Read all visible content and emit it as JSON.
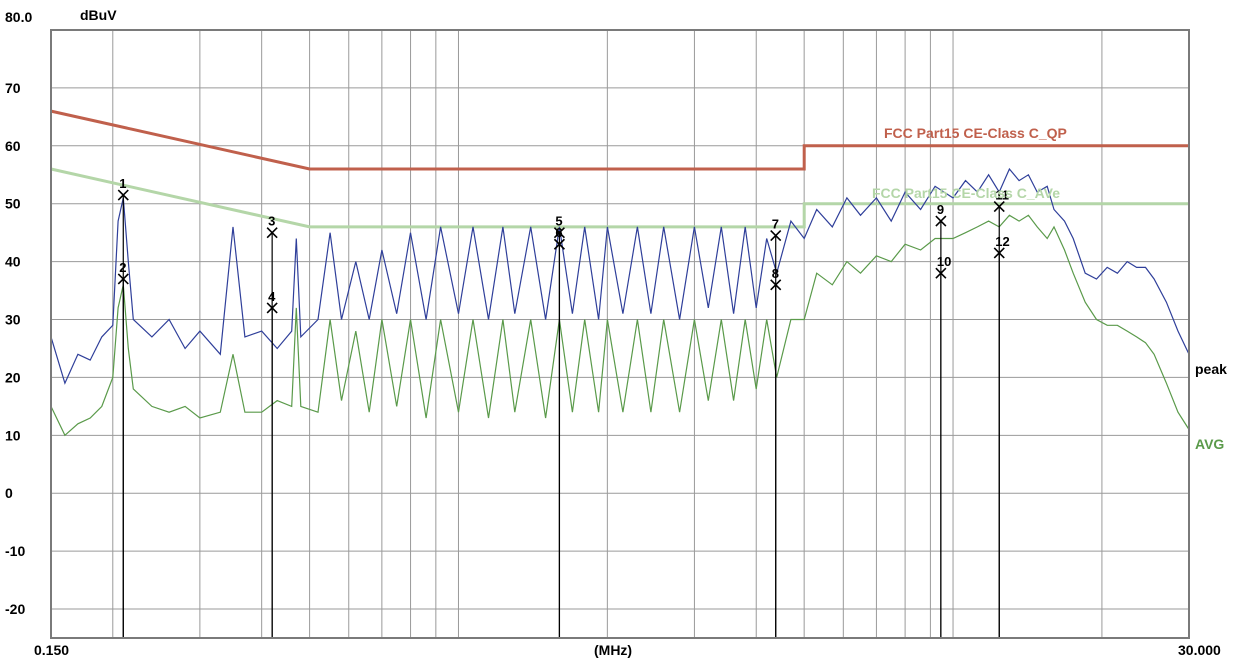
{
  "chart_data": {
    "type": "line",
    "xlabel": "(MHz)",
    "ylabel": "dBuV",
    "xscale": "log",
    "xlim": [
      0.15,
      30.0
    ],
    "ylim": [
      -25,
      80
    ],
    "x_tick_labels": {
      "min": "0.150",
      "max": "30.000"
    },
    "y_top_label": "80.0",
    "y_ticks": [
      70,
      60,
      50,
      40,
      30,
      20,
      10,
      0,
      -10,
      -20
    ],
    "grid": true,
    "limits": [
      {
        "name": "FCC Part15 CE-Class C_QP",
        "color": "#c0604c",
        "points": [
          [
            0.15,
            66
          ],
          [
            0.5,
            56
          ],
          [
            5.0,
            56
          ],
          [
            5.0,
            60
          ],
          [
            30.0,
            60
          ]
        ]
      },
      {
        "name": "FCC Part15 CE-Class C_AVe",
        "color": "#b4d6a8",
        "points": [
          [
            0.15,
            56
          ],
          [
            0.5,
            46
          ],
          [
            5.0,
            46
          ],
          [
            5.0,
            50
          ],
          [
            30.0,
            50
          ]
        ]
      }
    ],
    "series": [
      {
        "name": "peak",
        "color": "#2f3f9a",
        "points": [
          [
            0.15,
            27
          ],
          [
            0.16,
            19
          ],
          [
            0.17,
            24
          ],
          [
            0.18,
            23
          ],
          [
            0.19,
            27
          ],
          [
            0.2,
            29
          ],
          [
            0.205,
            47
          ],
          [
            0.21,
            51
          ],
          [
            0.215,
            40
          ],
          [
            0.22,
            30
          ],
          [
            0.24,
            27
          ],
          [
            0.26,
            30
          ],
          [
            0.28,
            25
          ],
          [
            0.3,
            28
          ],
          [
            0.33,
            24
          ],
          [
            0.35,
            46
          ],
          [
            0.37,
            27
          ],
          [
            0.4,
            28
          ],
          [
            0.43,
            25
          ],
          [
            0.46,
            28
          ],
          [
            0.47,
            44
          ],
          [
            0.48,
            27
          ],
          [
            0.52,
            30
          ],
          [
            0.55,
            45
          ],
          [
            0.58,
            30
          ],
          [
            0.62,
            40
          ],
          [
            0.66,
            30
          ],
          [
            0.7,
            42
          ],
          [
            0.75,
            31
          ],
          [
            0.8,
            45
          ],
          [
            0.86,
            30
          ],
          [
            0.92,
            46
          ],
          [
            1.0,
            31
          ],
          [
            1.07,
            46
          ],
          [
            1.15,
            30
          ],
          [
            1.23,
            46
          ],
          [
            1.3,
            31
          ],
          [
            1.4,
            46
          ],
          [
            1.5,
            30
          ],
          [
            1.6,
            46
          ],
          [
            1.7,
            31
          ],
          [
            1.8,
            46
          ],
          [
            1.92,
            30
          ],
          [
            2.0,
            46
          ],
          [
            2.15,
            31
          ],
          [
            2.3,
            46
          ],
          [
            2.45,
            31
          ],
          [
            2.6,
            46
          ],
          [
            2.8,
            30
          ],
          [
            3.0,
            46
          ],
          [
            3.2,
            32
          ],
          [
            3.4,
            46
          ],
          [
            3.6,
            31
          ],
          [
            3.8,
            46
          ],
          [
            4.0,
            32
          ],
          [
            4.2,
            44
          ],
          [
            4.4,
            38
          ],
          [
            4.7,
            47
          ],
          [
            5.0,
            44
          ],
          [
            5.3,
            49
          ],
          [
            5.7,
            46
          ],
          [
            6.1,
            51
          ],
          [
            6.5,
            48
          ],
          [
            7.0,
            51
          ],
          [
            7.5,
            47
          ],
          [
            8.0,
            52
          ],
          [
            8.6,
            49
          ],
          [
            9.2,
            53
          ],
          [
            10.0,
            51
          ],
          [
            10.6,
            54
          ],
          [
            11.2,
            52
          ],
          [
            11.8,
            55
          ],
          [
            12.4,
            52
          ],
          [
            13.0,
            56
          ],
          [
            13.6,
            54
          ],
          [
            14.2,
            55
          ],
          [
            14.8,
            52
          ],
          [
            15.5,
            53
          ],
          [
            16.0,
            49
          ],
          [
            16.8,
            47
          ],
          [
            17.5,
            44
          ],
          [
            18.5,
            38
          ],
          [
            19.5,
            37
          ],
          [
            20.5,
            39
          ],
          [
            21.5,
            38
          ],
          [
            22.5,
            40
          ],
          [
            23.5,
            39
          ],
          [
            24.5,
            39
          ],
          [
            25.5,
            37
          ],
          [
            27.0,
            33
          ],
          [
            28.5,
            28
          ],
          [
            30.0,
            24
          ]
        ]
      },
      {
        "name": "AVG",
        "color": "#5a9a4a",
        "points": [
          [
            0.15,
            15
          ],
          [
            0.16,
            10
          ],
          [
            0.17,
            12
          ],
          [
            0.18,
            13
          ],
          [
            0.19,
            15
          ],
          [
            0.2,
            20
          ],
          [
            0.205,
            32
          ],
          [
            0.21,
            36
          ],
          [
            0.215,
            25
          ],
          [
            0.22,
            18
          ],
          [
            0.24,
            15
          ],
          [
            0.26,
            14
          ],
          [
            0.28,
            15
          ],
          [
            0.3,
            13
          ],
          [
            0.33,
            14
          ],
          [
            0.35,
            24
          ],
          [
            0.37,
            14
          ],
          [
            0.4,
            14
          ],
          [
            0.43,
            16
          ],
          [
            0.46,
            15
          ],
          [
            0.47,
            32
          ],
          [
            0.48,
            15
          ],
          [
            0.52,
            14
          ],
          [
            0.55,
            30
          ],
          [
            0.58,
            16
          ],
          [
            0.62,
            28
          ],
          [
            0.66,
            14
          ],
          [
            0.7,
            30
          ],
          [
            0.75,
            15
          ],
          [
            0.8,
            30
          ],
          [
            0.86,
            13
          ],
          [
            0.92,
            30
          ],
          [
            1.0,
            14
          ],
          [
            1.07,
            30
          ],
          [
            1.15,
            13
          ],
          [
            1.23,
            30
          ],
          [
            1.3,
            14
          ],
          [
            1.4,
            30
          ],
          [
            1.5,
            13
          ],
          [
            1.6,
            30
          ],
          [
            1.7,
            14
          ],
          [
            1.8,
            30
          ],
          [
            1.92,
            14
          ],
          [
            2.0,
            30
          ],
          [
            2.15,
            14
          ],
          [
            2.3,
            30
          ],
          [
            2.45,
            14
          ],
          [
            2.6,
            30
          ],
          [
            2.8,
            14
          ],
          [
            3.0,
            30
          ],
          [
            3.2,
            16
          ],
          [
            3.4,
            30
          ],
          [
            3.6,
            16
          ],
          [
            3.8,
            30
          ],
          [
            4.0,
            18
          ],
          [
            4.2,
            30
          ],
          [
            4.4,
            20
          ],
          [
            4.7,
            30
          ],
          [
            5.0,
            30
          ],
          [
            5.3,
            38
          ],
          [
            5.7,
            36
          ],
          [
            6.1,
            40
          ],
          [
            6.5,
            38
          ],
          [
            7.0,
            41
          ],
          [
            7.5,
            40
          ],
          [
            8.0,
            43
          ],
          [
            8.6,
            42
          ],
          [
            9.2,
            44
          ],
          [
            10.0,
            44
          ],
          [
            10.6,
            45
          ],
          [
            11.2,
            46
          ],
          [
            11.8,
            47
          ],
          [
            12.4,
            46
          ],
          [
            13.0,
            48
          ],
          [
            13.6,
            47
          ],
          [
            14.2,
            48
          ],
          [
            14.8,
            46
          ],
          [
            15.5,
            44
          ],
          [
            16.0,
            46
          ],
          [
            16.8,
            42
          ],
          [
            17.5,
            38
          ],
          [
            18.5,
            33
          ],
          [
            19.5,
            30
          ],
          [
            20.5,
            29
          ],
          [
            21.5,
            29
          ],
          [
            22.5,
            28
          ],
          [
            23.5,
            27
          ],
          [
            24.5,
            26
          ],
          [
            25.5,
            24
          ],
          [
            27.0,
            19
          ],
          [
            28.5,
            14
          ],
          [
            30.0,
            11
          ]
        ]
      }
    ],
    "markers": [
      {
        "label": "1",
        "x": 0.21,
        "y": 51.5
      },
      {
        "label": "2",
        "x": 0.21,
        "y": 37
      },
      {
        "label": "3",
        "x": 0.42,
        "y": 45
      },
      {
        "label": "4",
        "x": 0.42,
        "y": 32
      },
      {
        "label": "5",
        "x": 1.6,
        "y": 45
      },
      {
        "label": "6",
        "x": 1.6,
        "y": 43
      },
      {
        "label": "7",
        "x": 4.38,
        "y": 44.5
      },
      {
        "label": "8",
        "x": 4.38,
        "y": 36
      },
      {
        "label": "9",
        "x": 9.45,
        "y": 47
      },
      {
        "label": "10",
        "x": 9.45,
        "y": 38
      },
      {
        "label": "11",
        "x": 12.4,
        "y": 49.5
      },
      {
        "label": "12",
        "x": 12.4,
        "y": 41.5
      }
    ]
  }
}
